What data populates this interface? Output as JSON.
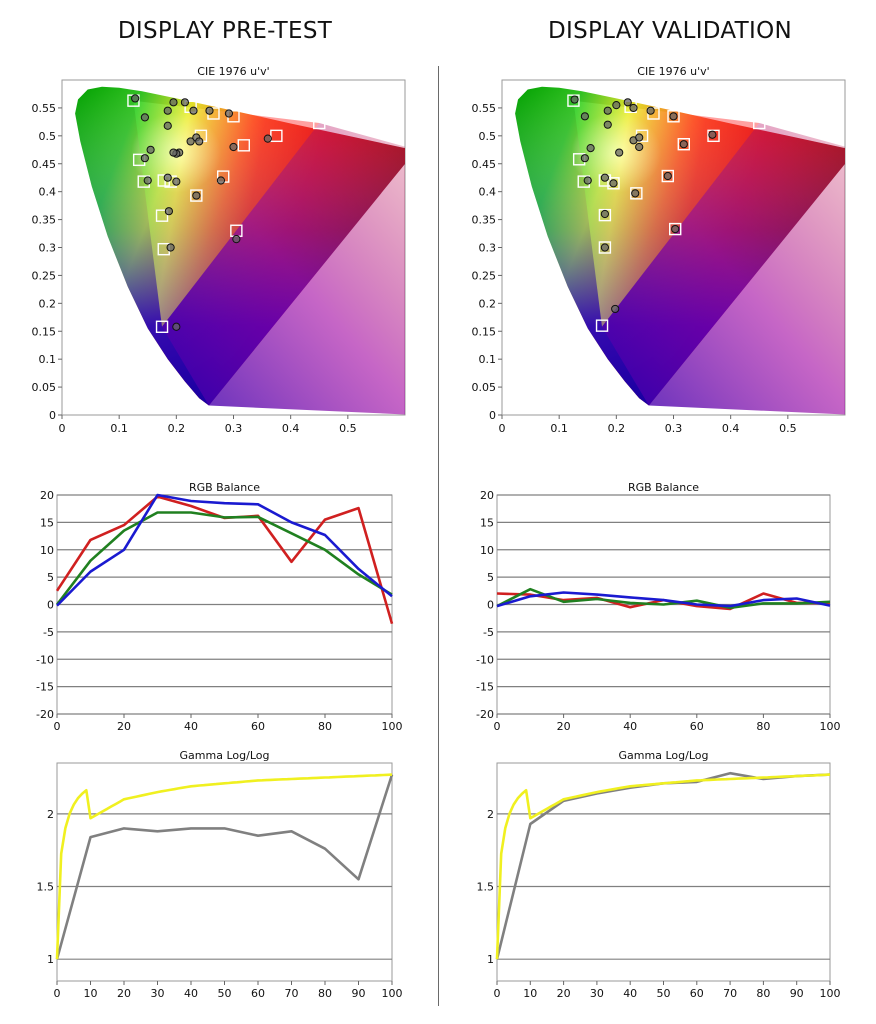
{
  "page": {
    "left_title": "DISPLAY PRE-TEST",
    "right_title": "DISPLAY VALIDATION"
  },
  "colors": {
    "red_series": "#d02020",
    "green_series": "#208020",
    "blue_series": "#1a1ad0",
    "target_gamma": "#f0f020",
    "measured_gamma": "#808080",
    "grid": "#808080"
  },
  "chart_data": [
    {
      "id": "cie-pre",
      "type": "scatter",
      "title": "CIE 1976 u'v'",
      "xlim": [
        0,
        0.6
      ],
      "ylim": [
        0,
        0.6
      ],
      "x_ticks": [
        "0",
        "0.1",
        "0.2",
        "0.3",
        "0.4",
        "0.5"
      ],
      "y_ticks": [
        "0",
        "0.05",
        "0.1",
        "0.15",
        "0.2",
        "0.25",
        "0.3",
        "0.35",
        "0.4",
        "0.45",
        "0.5",
        "0.55"
      ],
      "gamut_triangle": [
        [
          0.45,
          0.523
        ],
        [
          0.125,
          0.563
        ],
        [
          0.175,
          0.158
        ]
      ],
      "series": [
        {
          "marker": "square",
          "points": [
            [
              0.125,
              0.563
            ],
            [
              0.45,
              0.523
            ],
            [
              0.175,
              0.158
            ],
            [
              0.375,
              0.5
            ],
            [
              0.305,
              0.33
            ],
            [
              0.318,
              0.483
            ],
            [
              0.282,
              0.427
            ],
            [
              0.235,
              0.393
            ],
            [
              0.175,
              0.357
            ],
            [
              0.178,
              0.297
            ],
            [
              0.135,
              0.457
            ],
            [
              0.143,
              0.418
            ],
            [
              0.19,
              0.418
            ],
            [
              0.178,
              0.42
            ],
            [
              0.265,
              0.54
            ],
            [
              0.3,
              0.535
            ],
            [
              0.225,
              0.552
            ],
            [
              0.243,
              0.5
            ]
          ]
        },
        {
          "marker": "circle",
          "points": [
            [
              0.128,
              0.567
            ],
            [
              0.2,
              0.158
            ],
            [
              0.19,
              0.3
            ],
            [
              0.187,
              0.365
            ],
            [
              0.235,
              0.393
            ],
            [
              0.185,
              0.425
            ],
            [
              0.2,
              0.418
            ],
            [
              0.305,
              0.315
            ],
            [
              0.155,
              0.475
            ],
            [
              0.145,
              0.46
            ],
            [
              0.15,
              0.42
            ],
            [
              0.205,
              0.47
            ],
            [
              0.2,
              0.468
            ],
            [
              0.195,
              0.47
            ],
            [
              0.185,
              0.518
            ],
            [
              0.145,
              0.533
            ],
            [
              0.185,
              0.545
            ],
            [
              0.195,
              0.56
            ],
            [
              0.215,
              0.56
            ],
            [
              0.23,
              0.545
            ],
            [
              0.258,
              0.545
            ],
            [
              0.292,
              0.54
            ],
            [
              0.3,
              0.48
            ],
            [
              0.278,
              0.42
            ],
            [
              0.36,
              0.495
            ],
            [
              0.225,
              0.49
            ],
            [
              0.235,
              0.497
            ],
            [
              0.24,
              0.49
            ]
          ]
        }
      ]
    },
    {
      "id": "cie-val",
      "type": "scatter",
      "title": "CIE 1976 u'v'",
      "xlim": [
        0,
        0.6
      ],
      "ylim": [
        0,
        0.6
      ],
      "x_ticks": [
        "0",
        "0.1",
        "0.2",
        "0.3",
        "0.4",
        "0.5"
      ],
      "y_ticks": [
        "0",
        "0.05",
        "0.1",
        "0.15",
        "0.2",
        "0.25",
        "0.3",
        "0.35",
        "0.4",
        "0.45",
        "0.5",
        "0.55"
      ],
      "gamut_triangle": [
        [
          0.45,
          0.523
        ],
        [
          0.125,
          0.563
        ],
        [
          0.175,
          0.158
        ]
      ],
      "series": [
        {
          "marker": "square",
          "points": [
            [
              0.125,
              0.563
            ],
            [
              0.45,
              0.523
            ],
            [
              0.175,
              0.16
            ],
            [
              0.37,
              0.5
            ],
            [
              0.303,
              0.333
            ],
            [
              0.318,
              0.485
            ],
            [
              0.29,
              0.428
            ],
            [
              0.235,
              0.397
            ],
            [
              0.18,
              0.358
            ],
            [
              0.18,
              0.3
            ],
            [
              0.135,
              0.458
            ],
            [
              0.143,
              0.418
            ],
            [
              0.195,
              0.415
            ],
            [
              0.18,
              0.42
            ],
            [
              0.265,
              0.54
            ],
            [
              0.3,
              0.535
            ],
            [
              0.225,
              0.552
            ],
            [
              0.245,
              0.5
            ]
          ]
        },
        {
          "marker": "circle",
          "points": [
            [
              0.127,
              0.565
            ],
            [
              0.198,
              0.19
            ],
            [
              0.18,
              0.3
            ],
            [
              0.18,
              0.36
            ],
            [
              0.233,
              0.397
            ],
            [
              0.195,
              0.415
            ],
            [
              0.18,
              0.425
            ],
            [
              0.303,
              0.333
            ],
            [
              0.155,
              0.478
            ],
            [
              0.145,
              0.46
            ],
            [
              0.15,
              0.42
            ],
            [
              0.205,
              0.47
            ],
            [
              0.185,
              0.52
            ],
            [
              0.145,
              0.535
            ],
            [
              0.185,
              0.545
            ],
            [
              0.2,
              0.555
            ],
            [
              0.22,
              0.56
            ],
            [
              0.23,
              0.55
            ],
            [
              0.26,
              0.545
            ],
            [
              0.3,
              0.535
            ],
            [
              0.318,
              0.485
            ],
            [
              0.29,
              0.428
            ],
            [
              0.368,
              0.502
            ],
            [
              0.23,
              0.492
            ],
            [
              0.24,
              0.497
            ],
            [
              0.24,
              0.48
            ]
          ]
        }
      ]
    },
    {
      "id": "rgb-pre",
      "type": "line",
      "title": "RGB Balance",
      "x": [
        0,
        10,
        20,
        30,
        40,
        50,
        60,
        70,
        80,
        90,
        100
      ],
      "xlim": [
        0,
        100
      ],
      "ylim": [
        -20,
        20
      ],
      "x_ticks": [
        "0",
        "20",
        "40",
        "60",
        "80",
        "100"
      ],
      "y_ticks": [
        "-20",
        "-15",
        "-10",
        "-5",
        "0",
        "5",
        "10",
        "15",
        "20"
      ],
      "series": [
        {
          "color": "#d02020",
          "values": [
            2.5,
            11.8,
            14.5,
            19.7,
            18.0,
            15.8,
            16.2,
            7.8,
            15.5,
            17.6,
            -3.5
          ]
        },
        {
          "color": "#208020",
          "values": [
            0,
            8.0,
            13.5,
            16.8,
            16.8,
            15.9,
            16.0,
            13.0,
            10.0,
            5.5,
            1.8
          ]
        },
        {
          "color": "#1a1ad0",
          "values": [
            -0.2,
            6.0,
            10.0,
            20.0,
            18.9,
            18.5,
            18.3,
            15.0,
            12.7,
            6.5,
            1.5
          ]
        }
      ]
    },
    {
      "id": "rgb-val",
      "type": "line",
      "title": "RGB Balance",
      "x": [
        0,
        10,
        20,
        30,
        40,
        50,
        60,
        70,
        80,
        90,
        100
      ],
      "xlim": [
        0,
        100
      ],
      "ylim": [
        -20,
        20
      ],
      "x_ticks": [
        "0",
        "20",
        "40",
        "60",
        "80",
        "100"
      ],
      "y_ticks": [
        "-20",
        "-15",
        "-10",
        "-5",
        "0",
        "5",
        "10",
        "15",
        "20"
      ],
      "series": [
        {
          "color": "#d02020",
          "values": [
            2.0,
            1.8,
            0.8,
            1.2,
            -0.5,
            0.8,
            -0.3,
            -0.8,
            2.0,
            0.3,
            0.3
          ]
        },
        {
          "color": "#208020",
          "values": [
            -0.3,
            2.8,
            0.5,
            1.0,
            0.3,
            0.0,
            0.7,
            -0.6,
            0.2,
            0.2,
            0.5
          ]
        },
        {
          "color": "#1a1ad0",
          "values": [
            -0.3,
            1.5,
            2.2,
            1.8,
            1.3,
            0.8,
            0.0,
            -0.3,
            0.8,
            1.1,
            -0.2
          ]
        }
      ]
    },
    {
      "id": "gamma-pre",
      "type": "line",
      "title": "Gamma Log/Log",
      "x": [
        0,
        10,
        20,
        30,
        40,
        50,
        60,
        70,
        80,
        90,
        100
      ],
      "xlim": [
        0,
        100
      ],
      "ylim": [
        0.85,
        2.35
      ],
      "x_ticks": [
        "0",
        "10",
        "20",
        "30",
        "40",
        "50",
        "60",
        "70",
        "80",
        "90",
        "100"
      ],
      "y_ticks": [
        "1",
        "1.5",
        "2"
      ],
      "series": [
        {
          "color": "#808080",
          "values": [
            1.0,
            1.84,
            1.9,
            1.88,
            1.9,
            1.9,
            1.85,
            1.88,
            1.76,
            1.55,
            2.27
          ]
        },
        {
          "color": "#f0f020",
          "curve": "target",
          "values": [
            1.0,
            1.97,
            2.1,
            2.15,
            2.19,
            2.21,
            2.23,
            2.24,
            2.25,
            2.26,
            2.27
          ]
        }
      ]
    },
    {
      "id": "gamma-val",
      "type": "line",
      "title": "Gamma Log/Log",
      "x": [
        0,
        10,
        20,
        30,
        40,
        50,
        60,
        70,
        80,
        90,
        100
      ],
      "xlim": [
        0,
        100
      ],
      "ylim": [
        0.85,
        2.35
      ],
      "x_ticks": [
        "0",
        "10",
        "20",
        "30",
        "40",
        "50",
        "60",
        "70",
        "80",
        "90",
        "100"
      ],
      "y_ticks": [
        "1",
        "1.5",
        "2"
      ],
      "series": [
        {
          "color": "#808080",
          "values": [
            1.0,
            1.93,
            2.09,
            2.14,
            2.18,
            2.21,
            2.22,
            2.28,
            2.24,
            2.26,
            2.27
          ]
        },
        {
          "color": "#f0f020",
          "curve": "target",
          "values": [
            1.0,
            1.97,
            2.1,
            2.15,
            2.19,
            2.21,
            2.23,
            2.24,
            2.25,
            2.26,
            2.27
          ]
        }
      ]
    }
  ]
}
